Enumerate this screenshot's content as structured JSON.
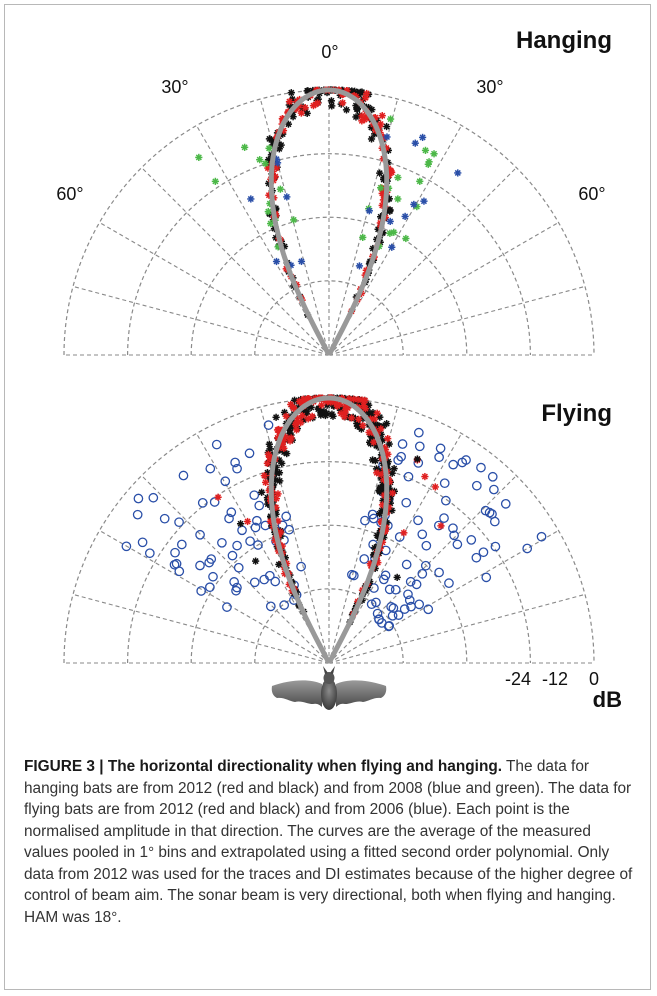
{
  "figure": {
    "panels": [
      {
        "title": "Hanging",
        "angle_labels": [
          "0°",
          "30°",
          "30°",
          "60°",
          "60°"
        ]
      },
      {
        "title": "Flying",
        "db_ticks": [
          "-24",
          "-12",
          "0"
        ],
        "db_unit": "dB"
      }
    ]
  },
  "chart_data": [
    {
      "type": "scatter",
      "title": "Hanging",
      "coordinate_system": "polar (half, -90° to 90°)",
      "angle_ticks_deg": [
        -60,
        -30,
        0,
        30,
        60
      ],
      "radial_unit": "dB",
      "radial_range_db": [
        -36,
        0
      ],
      "grid": true,
      "series": [
        {
          "marker": "*",
          "color": "#e02020",
          "values": []
        },
        {
          "marker": "*",
          "color": "#111111",
          "values": []
        },
        {
          "marker": "*",
          "color": "#2a4fa8",
          "values": []
        },
        {
          "marker": "*",
          "color": "#4cb848",
          "values": []
        },
        {
          "type": "line",
          "color": "#999999",
          "angle_deg": [
            -80,
            -70,
            -60,
            -50,
            -40,
            -30,
            -20,
            -10,
            0,
            10,
            20,
            30,
            40,
            50,
            60,
            70,
            80
          ],
          "db": [
            -34.2,
            -31.7,
            -28.9,
            -25.9,
            -22.6,
            -18.8,
            -14.3,
            -8.4,
            0,
            -8.4,
            -14.3,
            -18.8,
            -22.6,
            -25.9,
            -28.9,
            -31.7,
            -34.2
          ]
        }
      ]
    },
    {
      "type": "scatter",
      "title": "Flying",
      "coordinate_system": "polar (half, -90° to 90°)",
      "radial_unit": "dB",
      "radial_ticks_db": [
        -24,
        -12,
        0
      ],
      "radial_range_db": [
        -36,
        0
      ],
      "grid": true,
      "series": [
        {
          "marker": "*",
          "color": "#e02020",
          "values": []
        },
        {
          "marker": "*",
          "color": "#111111",
          "values": []
        },
        {
          "marker": "o",
          "color": "#2a4fa8",
          "values": []
        },
        {
          "type": "line",
          "color": "#999999",
          "angle_deg": [
            -80,
            -70,
            -60,
            -50,
            -40,
            -30,
            -20,
            -10,
            0,
            10,
            20,
            30,
            40,
            50,
            60,
            70,
            80
          ],
          "db": [
            -34.2,
            -31.7,
            -28.9,
            -25.9,
            -22.6,
            -18.8,
            -14.3,
            -8.4,
            0,
            -8.4,
            -14.3,
            -18.8,
            -22.6,
            -25.9,
            -28.9,
            -31.7,
            -34.2
          ]
        }
      ]
    }
  ],
  "caption": {
    "title": "FIGURE 3 | The horizontal directionality when flying and hanging.",
    "body_1": " The data for hanging bats are from 2012 (red and black) and from 2008 (blue and green). The data for flying bats are from 2012 (red and black) and from 2006 (blue). Each point is the normalised amplitude in that direction. The curves are the average of the measured values pooled in 1",
    "deg_1": "°",
    "body_2": " bins and extrapolated using a fitted second order polynomial. Only data from 2012 was used for the traces and DI estimates because of the higher degree of control of beam aim. The sonar beam is very directional, both when flying and hanging. HAM was 18",
    "deg_2": "°",
    "body_3": "."
  },
  "colors": {
    "red": "#e02020",
    "black": "#111111",
    "blue": "#2a4fa8",
    "green": "#4cb848",
    "curve": "#999999",
    "grid": "#8a8a8a"
  }
}
